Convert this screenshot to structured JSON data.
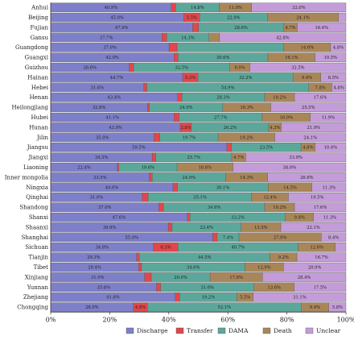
{
  "chart_data": {
    "type": "bar",
    "orientation": "horizontal",
    "stacked": "percent",
    "title": "",
    "xlabel": "",
    "ylabel": "",
    "xlim": [
      0,
      100
    ],
    "x_ticks": [
      "0%",
      "20%",
      "40%",
      "60%",
      "80%",
      "100%"
    ],
    "legend_position": "bottom",
    "grid": false,
    "categories": [
      "Anhui",
      "Beijing",
      "Fujian",
      "Gansu",
      "Guangdong",
      "Guangxi",
      "Guizhou",
      "Hainan",
      "Hebei",
      "Henan",
      "Heilongjiang",
      "Hubei",
      "Hunan",
      "Jilin",
      "Jiangsu",
      "Jiangxi",
      "Liaoning",
      "Inner mongolia",
      "Ningxia",
      "Qinghai",
      "Shandong",
      "Shanxi",
      "Shaanxi",
      "Shanghai",
      "Sichuan",
      "Tianjin",
      "Tibet",
      "Xinjiang",
      "Yunnan",
      "Zhejiang",
      "Chongqing"
    ],
    "series": [
      {
        "name": "Discharge",
        "color": "#7e7fc9",
        "values": [
          40.9,
          45.0,
          47.9,
          37.7,
          37.0,
          42.0,
          26.6,
          44.7,
          31.6,
          43.4,
          32.8,
          41.1,
          43.9,
          35.0,
          59.5,
          34.3,
          22.4,
          33.5,
          40.6,
          31.0,
          37.0,
          47.6,
          39.9,
          55.0,
          34.8,
          29.3,
          29.4,
          31.9,
          35.8,
          41.8,
          28.0
        ],
        "labels": [
          "40.9%",
          "45.0%",
          "47.9%",
          "37.7%",
          "37.0%",
          "42.0%",
          "26.6%",
          "44.7%",
          "31.6%",
          "43.4%",
          "32.8%",
          "41.1%",
          "43.9%",
          "35.0%",
          "59.5%",
          "34.3%",
          "22.4%",
          "33.5%",
          "40.6%",
          "31.0%",
          "37.0%",
          "47.6%",
          "39.9%",
          "55.0%",
          "34.8%",
          "29.3%",
          "29.4%",
          "31.9%",
          "35.8%",
          "41.8%",
          "28.0%"
        ]
      },
      {
        "name": "Transfer",
        "color": "#e0474c",
        "values": [
          1.5,
          5.5,
          2.0,
          1.6,
          2.5,
          1.4,
          1.5,
          5.2,
          1.0,
          1.5,
          0.7,
          1.7,
          3.8,
          2.0,
          1.6,
          1.2,
          0.5,
          1.0,
          1.5,
          2.0,
          1.6,
          1.0,
          1.3,
          1.5,
          8.3,
          0.9,
          1.0,
          2.3,
          1.4,
          1.5,
          4.8
        ],
        "labels": [
          "",
          "5.5%",
          "",
          "",
          "",
          "",
          "",
          "5.2%",
          "",
          "",
          "",
          "",
          "3.8%",
          "",
          "",
          "",
          "",
          "",
          "",
          "",
          "",
          "",
          "",
          "",
          "8.3%",
          "",
          "",
          "",
          "",
          "",
          "4.8%"
        ]
      },
      {
        "name": "DAMA",
        "color": "#5ca79b",
        "values": [
          14.8,
          22.9,
          28.6,
          14.3,
          33.4,
          30.6,
          32.5,
          32.2,
          54.9,
          28.3,
          24.9,
          27.7,
          26.2,
          19.7,
          23.5,
          25.7,
          19.6,
          24.9,
          30.1,
          35.1,
          34.6,
          33.2,
          23.4,
          7.4,
          40.7,
          44.5,
          34.6,
          20.0,
          31.6,
          19.2,
          52.1
        ],
        "labels": [
          "14.8%",
          "22.9%",
          "28.6%",
          "14.3%",
          "",
          "30.6%",
          "32.5%",
          "32.2%",
          "54.9%",
          "28.3%",
          "24.9%",
          "27.7%",
          "26.2%",
          "19.7%",
          "23.5%",
          "25.7%",
          "19.6%",
          "24.9%",
          "30.1%",
          "35.1%",
          "34.6%",
          "33.2%",
          "23.4%",
          "7.4%",
          "40.7%",
          "44.5%",
          "34.6%",
          "20.0%",
          "31.6%",
          "19.2%",
          "52.1%"
        ]
      },
      {
        "name": "Death",
        "color": "#a9865a",
        "values": [
          11.0,
          24.1,
          4.7,
          3.6,
          14.6,
          16.1,
          6.9,
          9.4,
          7.8,
          10.2,
          16.3,
          16.0,
          4.3,
          19.2,
          4.8,
          4.7,
          18.8,
          14.3,
          14.5,
          12.4,
          10.2,
          9.8,
          13.5,
          27.9,
          12.6,
          9.2,
          12.9,
          17.8,
          13.6,
          5.5,
          9.4
        ],
        "labels": [
          "11.0%",
          "24.1%",
          "4.7%",
          "",
          "14.6%",
          "16.1%",
          "6.9%",
          "9.4%",
          "7.8%",
          "10.2%",
          "16.3%",
          "16.0%",
          "4.3%",
          "19.2%",
          "4.8%",
          "4.7%",
          "18.8%",
          "14.3%",
          "14.5%",
          "12.4%",
          "10.2%",
          "9.8%",
          "13.5%",
          "27.9%",
          "12.6%",
          "9.2%",
          "12.9%",
          "17.8%",
          "13.6%",
          "5.5%",
          "9.4%"
        ]
      },
      {
        "name": "Unclear",
        "color": "#c49cd9",
        "values": [
          32.0,
          2.5,
          16.4,
          42.8,
          4.8,
          10.5,
          32.5,
          8.5,
          4.8,
          17.6,
          25.5,
          11.9,
          21.9,
          24.1,
          10.4,
          33.9,
          38.0,
          26.6,
          11.3,
          19.5,
          17.6,
          11.3,
          22.1,
          8.4,
          3.6,
          16.7,
          20.9,
          28.4,
          17.5,
          31.1,
          5.8
        ],
        "labels": [
          "32.0%",
          "",
          "16.4%",
          "42.8%",
          "4.8%",
          "10.5%",
          "32.5%",
          "8.5%",
          "4.8%",
          "17.6%",
          "25.5%",
          "11.9%",
          "21.9%",
          "24.1%",
          "10.4%",
          "33.9%",
          "38.0%",
          "26.6%",
          "11.3%",
          "19.5%",
          "17.6%",
          "11.3%",
          "22.1%",
          "8.4%",
          "",
          "16.7%",
          "20.9%",
          "28.4%",
          "17.5%",
          "31.1%",
          "5.8%"
        ]
      }
    ]
  }
}
